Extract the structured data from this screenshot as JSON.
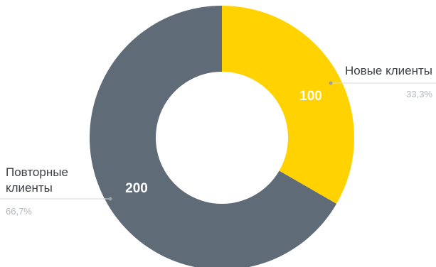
{
  "chart_data": {
    "type": "pie",
    "title": "",
    "slices": [
      {
        "label": "Новые клиенты",
        "value": 100,
        "percent_label": "33,3%",
        "color": "#ffd200"
      },
      {
        "label": "Повторные клиенты",
        "value": 200,
        "percent_label": "66,7%",
        "color": "#5f6b76"
      }
    ],
    "donut": true,
    "start_angle_deg": 0,
    "direction": "clockwise",
    "legend": "beside-slices"
  }
}
